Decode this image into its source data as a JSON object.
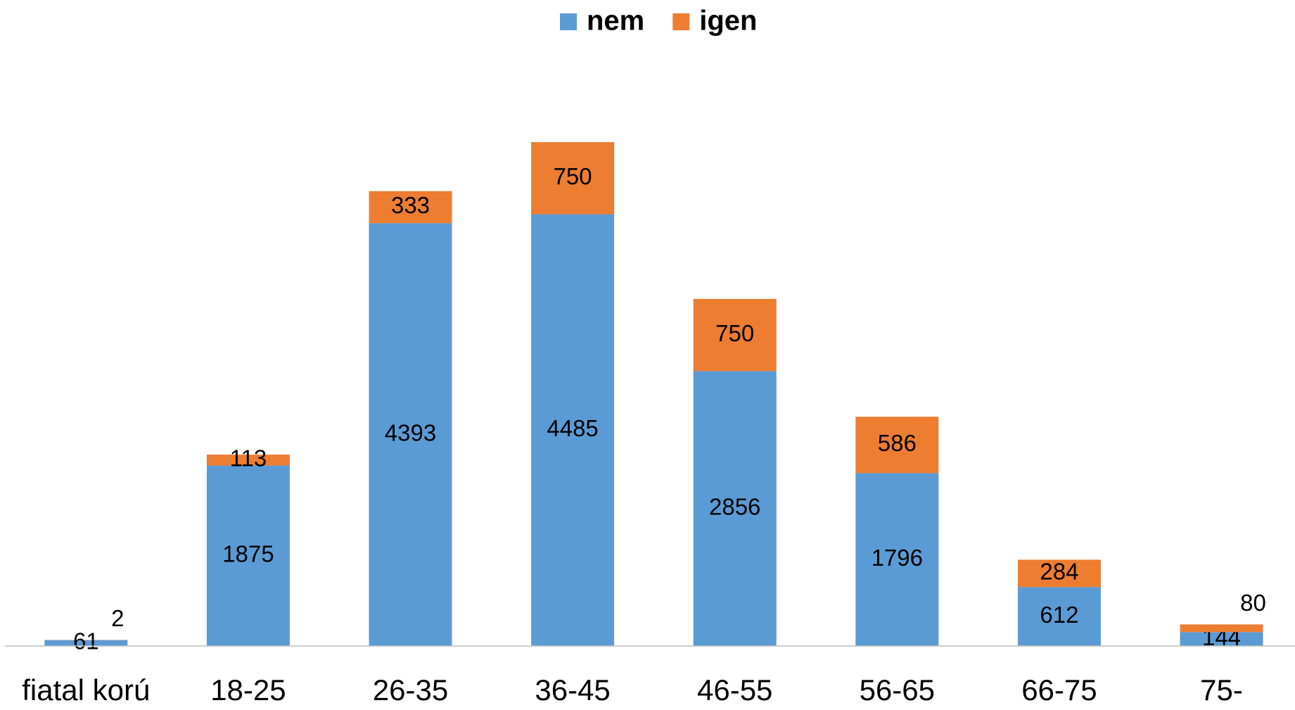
{
  "chart_data": {
    "type": "bar",
    "stacked": true,
    "categories": [
      "fiatal korú",
      "18-25",
      "26-35",
      "36-45",
      "46-55",
      "56-65",
      "66-75",
      "75-"
    ],
    "series": [
      {
        "name": "nem",
        "color": "#5b9bd5",
        "values": [
          61,
          1875,
          4393,
          4485,
          2856,
          1796,
          612,
          144
        ]
      },
      {
        "name": "igen",
        "color": "#ed7d31",
        "values": [
          2,
          113,
          333,
          750,
          750,
          586,
          284,
          80
        ]
      }
    ],
    "legend": "top"
  }
}
